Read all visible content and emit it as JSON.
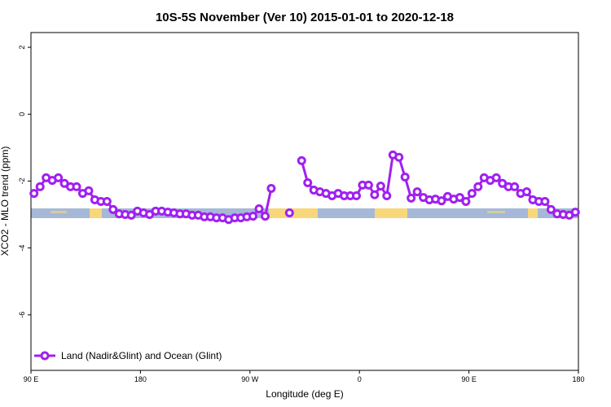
{
  "chart_data": {
    "type": "line",
    "title": "10S-5S November (Ver 10)   2015-01-01 to 2020-12-18",
    "xlabel": "Longitude (deg E)",
    "ylabel": "XCO2 - MLO trend (ppm)",
    "xlim": [
      90,
      540
    ],
    "xticks": [
      {
        "value": 90,
        "label": "90 E"
      },
      180,
      {
        "value": 270,
        "label": "90 W"
      },
      {
        "value": 360,
        "label": "0"
      },
      {
        "value": 450,
        "label": "90 E"
      },
      {
        "value": 540,
        "label": "180"
      }
    ],
    "ylim": [
      -7.66,
      2.44
    ],
    "yticks": [
      -6,
      -4,
      -2,
      0,
      2
    ],
    "legend": "bottom-left",
    "x": [
      92.5,
      97.5,
      102.5,
      107.5,
      112.5,
      117.5,
      122.5,
      127.5,
      132.5,
      137.5,
      142.5,
      147.5,
      152.5,
      157.5,
      162.5,
      167.5,
      172.5,
      177.5,
      182.5,
      187.5,
      192.5,
      197.5,
      202.5,
      207.5,
      212.5,
      217.5,
      222.5,
      227.5,
      232.5,
      237.5,
      242.5,
      247.5,
      252.5,
      257.5,
      262.5,
      267.5,
      272.5,
      277.5,
      282.5,
      287.5,
      292.5,
      297.5,
      302.5,
      307.5,
      312.5,
      317.5,
      322.5,
      327.5,
      332.5,
      337.5,
      342.5,
      347.5,
      352.5,
      357.5,
      362.5,
      367.5,
      372.5,
      377.5,
      382.5,
      387.5,
      392.5,
      397.5,
      402.5,
      407.5,
      412.5,
      417.5,
      422.5,
      427.5,
      432.5,
      437.5,
      442.5,
      447.5,
      452.5,
      457.5,
      462.5,
      467.5,
      472.5,
      477.5,
      482.5,
      487.5,
      492.5,
      497.5,
      502.5,
      507.5,
      512.5,
      517.5,
      522.5,
      527.5,
      532.5,
      537.5
    ],
    "series": [
      {
        "name": "Land (Nadir&Glint) and Ocean (Glint)",
        "color": "#a020f0",
        "values": [
          -2.37,
          -2.17,
          -1.9,
          -1.98,
          -1.9,
          -2.07,
          -2.17,
          -2.17,
          -2.37,
          -2.29,
          -2.56,
          -2.61,
          -2.61,
          -2.85,
          -2.98,
          -3.0,
          -3.02,
          -2.9,
          -2.95,
          -3.0,
          -2.9,
          -2.9,
          -2.93,
          -2.95,
          -2.98,
          -2.98,
          -3.02,
          -3.02,
          -3.07,
          -3.07,
          -3.1,
          -3.1,
          -3.15,
          -3.1,
          -3.1,
          -3.07,
          -3.05,
          -2.83,
          -3.05,
          -2.22,
          null,
          null,
          -2.95,
          null,
          -1.39,
          -2.05,
          -2.27,
          -2.32,
          -2.37,
          -2.44,
          -2.37,
          -2.44,
          -2.44,
          -2.44,
          -2.12,
          -2.12,
          -2.41,
          -2.15,
          -2.44,
          -1.22,
          -1.29,
          -1.88,
          -2.51,
          -2.32,
          -2.49,
          -2.56,
          -2.54,
          -2.59,
          -2.46,
          -2.54,
          -2.49,
          -2.61,
          -2.37,
          -2.17,
          -1.9,
          -1.98,
          -1.9,
          -2.07,
          -2.17,
          -2.17,
          -2.37,
          -2.32,
          -2.56,
          -2.61,
          -2.61,
          -2.85,
          -2.98,
          -3.0,
          -3.02,
          -2.93
        ]
      }
    ]
  }
}
